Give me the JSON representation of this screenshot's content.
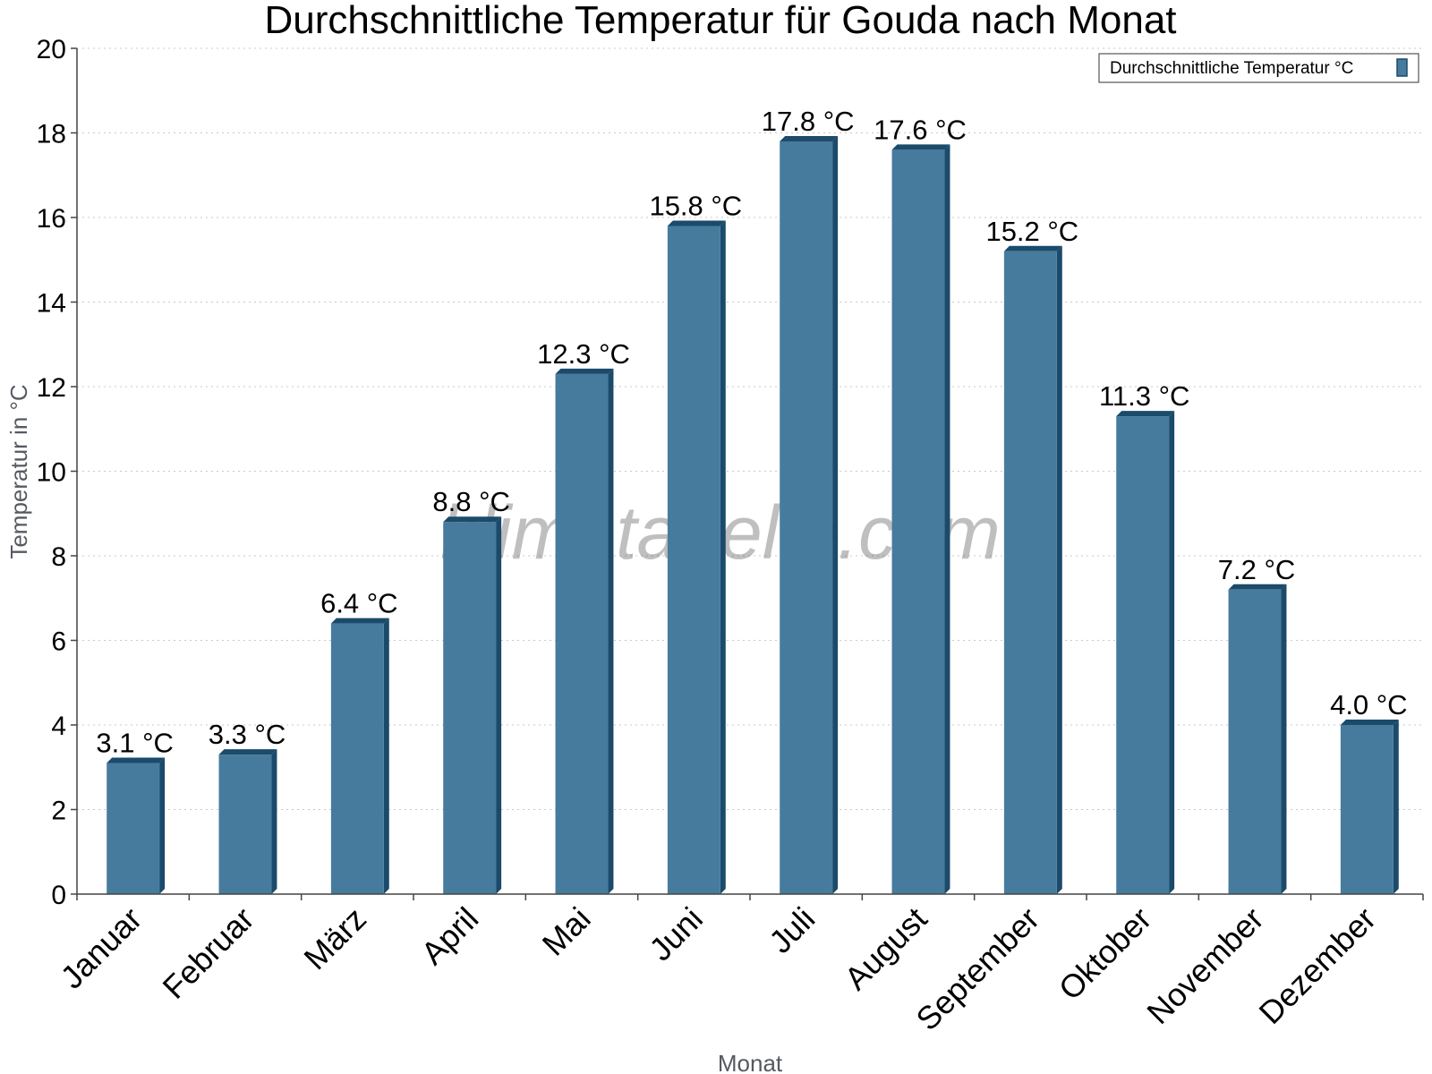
{
  "chart_data": {
    "type": "bar",
    "title": "Durchschnittliche Temperatur für Gouda nach Monat",
    "xlabel": "Monat",
    "ylabel": "Temperatur in °C",
    "categories": [
      "Januar",
      "Februar",
      "März",
      "April",
      "Mai",
      "Juni",
      "Juli",
      "August",
      "September",
      "Oktober",
      "November",
      "Dezember"
    ],
    "series": [
      {
        "name": "Durchschnittliche Temperatur °C",
        "values": [
          3.1,
          3.3,
          6.4,
          8.8,
          12.3,
          15.8,
          17.8,
          17.6,
          15.2,
          11.3,
          7.2,
          4.0
        ],
        "labels": [
          "3.1 °C",
          "3.3 °C",
          "6.4 °C",
          "8.8 °C",
          "12.3 °C",
          "15.8 °C",
          "17.8 °C",
          "17.6 °C",
          "15.2 °C",
          "11.3 °C",
          "7.2 °C",
          "4.0 °C"
        ]
      }
    ],
    "ylim": [
      0,
      20
    ],
    "yticks": [
      0,
      2,
      4,
      6,
      8,
      10,
      12,
      14,
      16,
      18,
      20
    ],
    "grid": true,
    "legend_position": "top-right",
    "bar_color": "#467b9d",
    "bar_shadow_color": "#1b4a6b",
    "watermark": "klimatabelle.com"
  }
}
